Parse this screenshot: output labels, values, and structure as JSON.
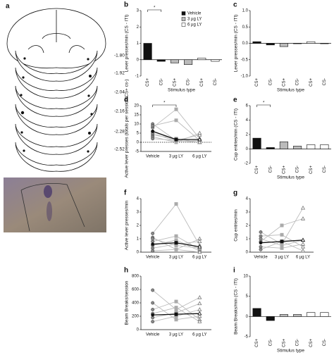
{
  "panel_a": {
    "label": "a",
    "coordinates": [
      "-1.80",
      "-1.92",
      "-2.04",
      "-2.16",
      "-2.28",
      "-2.52"
    ]
  },
  "chart_data": [
    {
      "type": "bar",
      "panel": "b",
      "ylabel": "Lever presses/min (CS - ITI)",
      "xlabel": "Stimulus type",
      "categories": [
        "CS+",
        "CS-",
        "CS+",
        "CS-",
        "CS+",
        "CS-"
      ],
      "values": [
        1.0,
        -0.1,
        -0.2,
        -0.3,
        0.1,
        -0.1
      ],
      "colors": [
        "#111111",
        "#111111",
        "#bbbbbb",
        "#bbbbbb",
        "#ffffff",
        "#ffffff"
      ],
      "legend": [
        {
          "name": "Vehicle",
          "color": "#111111"
        },
        {
          "name": "3 µg LY",
          "color": "#bbbbbb"
        },
        {
          "name": "6 µg LY",
          "color": "#ffffff"
        }
      ],
      "significance": "*",
      "ylim": [
        -1,
        3
      ],
      "yticks": [
        -1,
        0,
        1,
        2,
        3
      ]
    },
    {
      "type": "bar",
      "panel": "c",
      "ylabel": "Lever presses/min (CS - ITI)",
      "xlabel": "Stimulus type",
      "categories": [
        "CS+",
        "CS-",
        "CS+",
        "CS-",
        "CS+",
        "CS-"
      ],
      "values": [
        0.05,
        -0.05,
        -0.1,
        0.0,
        0.05,
        0.0
      ],
      "colors": [
        "#111111",
        "#111111",
        "#bbbbbb",
        "#bbbbbb",
        "#ffffff",
        "#ffffff"
      ],
      "ylim": [
        -1,
        1
      ],
      "yticks": [
        {
          "value": -1,
          "label": "-1.0"
        },
        {
          "value": -0.5,
          "label": "-0.5"
        },
        {
          "value": 0,
          "label": "0.0"
        },
        {
          "value": 0.5,
          "label": "0.5"
        },
        {
          "value": 1,
          "label": "1.0"
        }
      ]
    },
    {
      "type": "paired",
      "panel": "d",
      "ylabel": "Active lever presses (totals per session/CS+ cs-)",
      "categories": [
        "Vehicle",
        "3 µg LY",
        "6 µg LY"
      ],
      "zero_line": true,
      "significance": "*",
      "series": [
        {
          "values": [
            8,
            18,
            2
          ]
        },
        {
          "values": [
            10,
            1,
            0
          ]
        },
        {
          "values": [
            6,
            1,
            4
          ]
        },
        {
          "values": [
            4,
            2,
            0
          ]
        },
        {
          "values": [
            5,
            0.5,
            1
          ]
        },
        {
          "values": [
            3,
            0,
            5
          ]
        },
        {
          "values": [
            9,
            12,
            1
          ]
        },
        {
          "values": [
            2,
            1,
            0
          ]
        }
      ],
      "mean": [
        6,
        1.5,
        1.5
      ],
      "ylim": [
        -5,
        20
      ],
      "yticks": [
        -5,
        0,
        5,
        10,
        15,
        20
      ]
    },
    {
      "type": "bar",
      "panel": "e",
      "ylabel": "Cup entries/min (CS - ITI)",
      "xlabel": "Stimulus type",
      "categories": [
        "CS+",
        "CS-",
        "CS+",
        "CS-",
        "CS+",
        "CS-"
      ],
      "values": [
        1.5,
        0.2,
        1.0,
        0.4,
        0.6,
        0.6
      ],
      "colors": [
        "#111111",
        "#111111",
        "#bbbbbb",
        "#bbbbbb",
        "#ffffff",
        "#ffffff"
      ],
      "significance": "*",
      "ylim": [
        -2,
        6
      ],
      "yticks": [
        -2,
        0,
        2,
        4,
        6
      ]
    },
    {
      "type": "paired",
      "panel": "f",
      "ylabel": "Active lever presses/min",
      "categories": [
        "Vehicle",
        "3 µg LY",
        "6 µg LY"
      ],
      "series": [
        {
          "values": [
            1.4,
            3.6,
            0.5
          ]
        },
        {
          "values": [
            1.1,
            0.2,
            1.0
          ]
        },
        {
          "values": [
            0.8,
            1.2,
            0.2
          ]
        },
        {
          "values": [
            0.5,
            0.9,
            0.1
          ]
        },
        {
          "values": [
            0.3,
            0.6,
            0.8
          ]
        },
        {
          "values": [
            0.1,
            0.2,
            0.0
          ]
        },
        {
          "values": [
            1.0,
            0.5,
            0.3
          ]
        }
      ],
      "mean": [
        0.6,
        0.7,
        0.4
      ],
      "ylim": [
        0,
        4
      ],
      "yticks": [
        0,
        1,
        2,
        3,
        4
      ]
    },
    {
      "type": "paired",
      "panel": "g",
      "ylabel": "Cup entries/min",
      "categories": [
        "Vehicle",
        "3 µg LY",
        "6 µg LY"
      ],
      "series": [
        {
          "values": [
            1.5,
            0.6,
            3.3
          ]
        },
        {
          "values": [
            1.2,
            1.3,
            0.4
          ]
        },
        {
          "values": [
            0.8,
            2.0,
            2.5
          ]
        },
        {
          "values": [
            0.4,
            0.3,
            0.6
          ]
        },
        {
          "values": [
            0.2,
            0.8,
            0.1
          ]
        },
        {
          "values": [
            1.0,
            0.5,
            0.9
          ]
        }
      ],
      "mean": [
        0.7,
        0.8,
        0.9
      ],
      "ylim": [
        0,
        4
      ],
      "yticks": [
        0,
        1,
        2,
        3,
        4
      ]
    },
    {
      "type": "paired",
      "panel": "h",
      "ylabel": "Beam Breaks/session",
      "categories": [
        "Vehicle",
        "3 µg LY",
        "6 µg LY"
      ],
      "series": [
        {
          "values": [
            590,
            300,
            480
          ]
        },
        {
          "values": [
            400,
            150,
            200
          ]
        },
        {
          "values": [
            300,
            420,
            150
          ]
        },
        {
          "values": [
            180,
            250,
            390
          ]
        },
        {
          "values": [
            120,
            200,
            300
          ]
        },
        {
          "values": [
            240,
            330,
            120
          ]
        }
      ],
      "mean": [
        220,
        230,
        240
      ],
      "ylim": [
        0,
        800
      ],
      "yticks": [
        0,
        200,
        400,
        600,
        800
      ]
    },
    {
      "type": "bar",
      "panel": "i",
      "ylabel": "Beam Breaks/min (CS - ITI)",
      "xlabel": "Stimulus type",
      "categories": [
        "CS+",
        "CS-",
        "CS+",
        "CS-",
        "CS+",
        "CS-"
      ],
      "values": [
        2,
        -1,
        0.5,
        0.5,
        1,
        1
      ],
      "colors": [
        "#111111",
        "#111111",
        "#bbbbbb",
        "#bbbbbb",
        "#ffffff",
        "#ffffff"
      ],
      "ylim": [
        -5,
        10
      ],
      "yticks": [
        -5,
        0,
        5,
        10
      ]
    }
  ]
}
